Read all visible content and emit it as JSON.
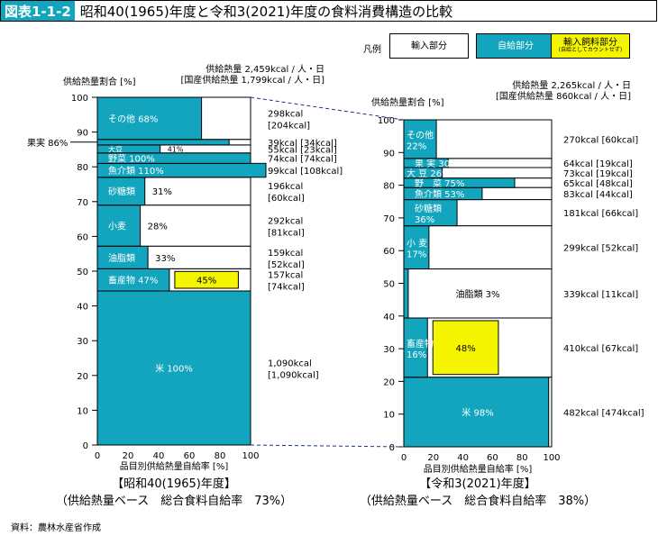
{
  "figure": {
    "label": "図表1-1-2",
    "title": "昭和40(1965)年度と令和3(2021)年度の食料消費構造の比較"
  },
  "legend": {
    "title": "凡例",
    "import_part": "輸入部分",
    "self_part": "自給部分",
    "feed_part": "輸入飼料部分",
    "feed_note": "(自給としてカウントせず)"
  },
  "colors": {
    "self": "#13a5bd",
    "feed": "#f5f500",
    "import": "#ffffff",
    "title_bg": "#13a5bd"
  },
  "source": "資料：農林水産省作成",
  "chart_data": [
    {
      "type": "bar",
      "id": "left",
      "ylabel": "供給熱量割合 [%]",
      "xlabel": "品目別供給熱量自給率 [%]",
      "xlim": [
        0,
        100
      ],
      "ylim": [
        0,
        100
      ],
      "xticks": [
        0,
        20,
        40,
        60,
        80,
        100
      ],
      "yticks": [
        0,
        10,
        20,
        30,
        40,
        50,
        60,
        70,
        80,
        90,
        100
      ],
      "supply_line1": "供給熱量  2,459kcal / 人・日",
      "supply_line2": "[国産供給熱量  1,799kcal / 人・日]",
      "caption1": "【昭和40(1965)年度】",
      "caption2": "（供給熱量ベース　総合食料自給率　73%）",
      "side_label": "果実 86%",
      "items": [
        {
          "name": "米",
          "label": "米  100%",
          "y0": 0,
          "y1": 44.3,
          "self": 100,
          "feed": 0,
          "kcal": "1,090kcal",
          "kcal2": "[1,090kcal]"
        },
        {
          "name": "畜産物",
          "label": "畜産物 47%",
          "y0": 44.3,
          "y1": 50.7,
          "self": 47,
          "feed": 45,
          "feed_label": "45%",
          "kcal": "157kcal",
          "kcal2": "[74kcal]"
        },
        {
          "name": "油脂類",
          "label": "油脂類",
          "outside_label": "33%",
          "y0": 50.7,
          "y1": 57.2,
          "self": 33,
          "feed": 0,
          "kcal": "159kcal",
          "kcal2": "[52kcal]"
        },
        {
          "name": "小麦",
          "label": "小麦",
          "outside_label": "28%",
          "y0": 57.2,
          "y1": 69.0,
          "self": 28,
          "feed": 0,
          "kcal": "292kcal",
          "kcal2": "[81kcal]"
        },
        {
          "name": "砂糖類",
          "label": "砂糖類",
          "outside_label": "31%",
          "y0": 69.0,
          "y1": 77.0,
          "self": 31,
          "feed": 0,
          "kcal": "196kcal",
          "kcal2": "[60kcal]"
        },
        {
          "name": "魚介類",
          "label": "魚介類 110%",
          "y0": 77.0,
          "y1": 81.0,
          "self": 110,
          "feed": 0,
          "kcal": "99kcal [108kcal]"
        },
        {
          "name": "野菜",
          "label": "野菜 100%",
          "y0": 81.0,
          "y1": 84.0,
          "self": 100,
          "feed": 0,
          "kcal": "74kcal [74kcal]"
        },
        {
          "name": "大豆",
          "label": "大豆",
          "outside_label": "41%",
          "y0": 84.0,
          "y1": 86.3,
          "self": 41,
          "feed": 0,
          "kcal": "55kcal [23kcal]"
        },
        {
          "name": "果実",
          "label": "",
          "y0": 86.3,
          "y1": 87.9,
          "self": 86,
          "feed": 0,
          "kcal": "39kcal [34kcal]"
        },
        {
          "name": "その他",
          "label": "その他  68%",
          "y0": 87.9,
          "y1": 100,
          "self": 68,
          "feed": 0,
          "kcal": "298kcal",
          "kcal2": "[204kcal]"
        }
      ]
    },
    {
      "type": "bar",
      "id": "right",
      "ylabel": "供給熱量割合 [%]",
      "xlabel": "品目別供給熱量自給率 [%]",
      "xlim": [
        0,
        100
      ],
      "ylim": [
        0,
        100
      ],
      "xticks": [
        0,
        20,
        40,
        60,
        80,
        100
      ],
      "yticks": [
        0,
        10,
        20,
        30,
        40,
        50,
        60,
        70,
        80,
        90,
        100
      ],
      "supply_line1": "供給熱量  2,265kcal / 人・日",
      "supply_line2": "[国産供給熱量    860kcal / 人・日]",
      "caption1": "【令和3(2021)年度】",
      "caption2": "（供給熱量ベース　総合食料自給率　38%）",
      "items": [
        {
          "name": "米",
          "label": "米  98%",
          "y0": 0,
          "y1": 21.3,
          "self": 98,
          "feed": 0,
          "kcal": "482kcal [474kcal]"
        },
        {
          "name": "畜産物",
          "label": "畜産物",
          "label2": "16%",
          "y0": 21.3,
          "y1": 39.4,
          "self": 16,
          "feed": 48,
          "feed_label": "48%",
          "kcal": "410kcal [67kcal]"
        },
        {
          "name": "油脂類",
          "label": "油脂類  3%",
          "y0": 39.4,
          "y1": 54.4,
          "self": 3,
          "feed": 0,
          "kcal": "339kcal [11kcal]"
        },
        {
          "name": "小麦",
          "label": "小 麦",
          "label2": "17%",
          "y0": 54.4,
          "y1": 67.6,
          "self": 17,
          "feed": 0,
          "kcal": "299kcal [52kcal]"
        },
        {
          "name": "砂糖類",
          "label": "砂糖類",
          "label2": "36%",
          "y0": 67.6,
          "y1": 75.6,
          "self": 36,
          "feed": 0,
          "kcal": "181kcal [66kcal]"
        },
        {
          "name": "魚介類",
          "label": "魚介類 53%",
          "y0": 75.6,
          "y1": 79.3,
          "self": 53,
          "feed": 0,
          "kcal": "83kcal [44kcal]"
        },
        {
          "name": "野菜",
          "label": "野　菜 75%",
          "y0": 79.3,
          "y1": 82.2,
          "self": 75,
          "feed": 0,
          "kcal": "65kcal [48kcal]"
        },
        {
          "name": "大豆",
          "label": "大 豆 26%",
          "y0": 82.2,
          "y1": 85.4,
          "self": 26,
          "feed": 0,
          "kcal": "73kcal [19kcal]"
        },
        {
          "name": "果実",
          "label": "果 実 30%",
          "y0": 85.4,
          "y1": 88.2,
          "self": 30,
          "feed": 0,
          "kcal": "64kcal [19kcal]"
        },
        {
          "name": "その他",
          "label": "その他",
          "label2": "22%",
          "y0": 88.2,
          "y1": 100,
          "self": 22,
          "feed": 0,
          "kcal": "270kcal [60kcal]"
        }
      ]
    }
  ]
}
